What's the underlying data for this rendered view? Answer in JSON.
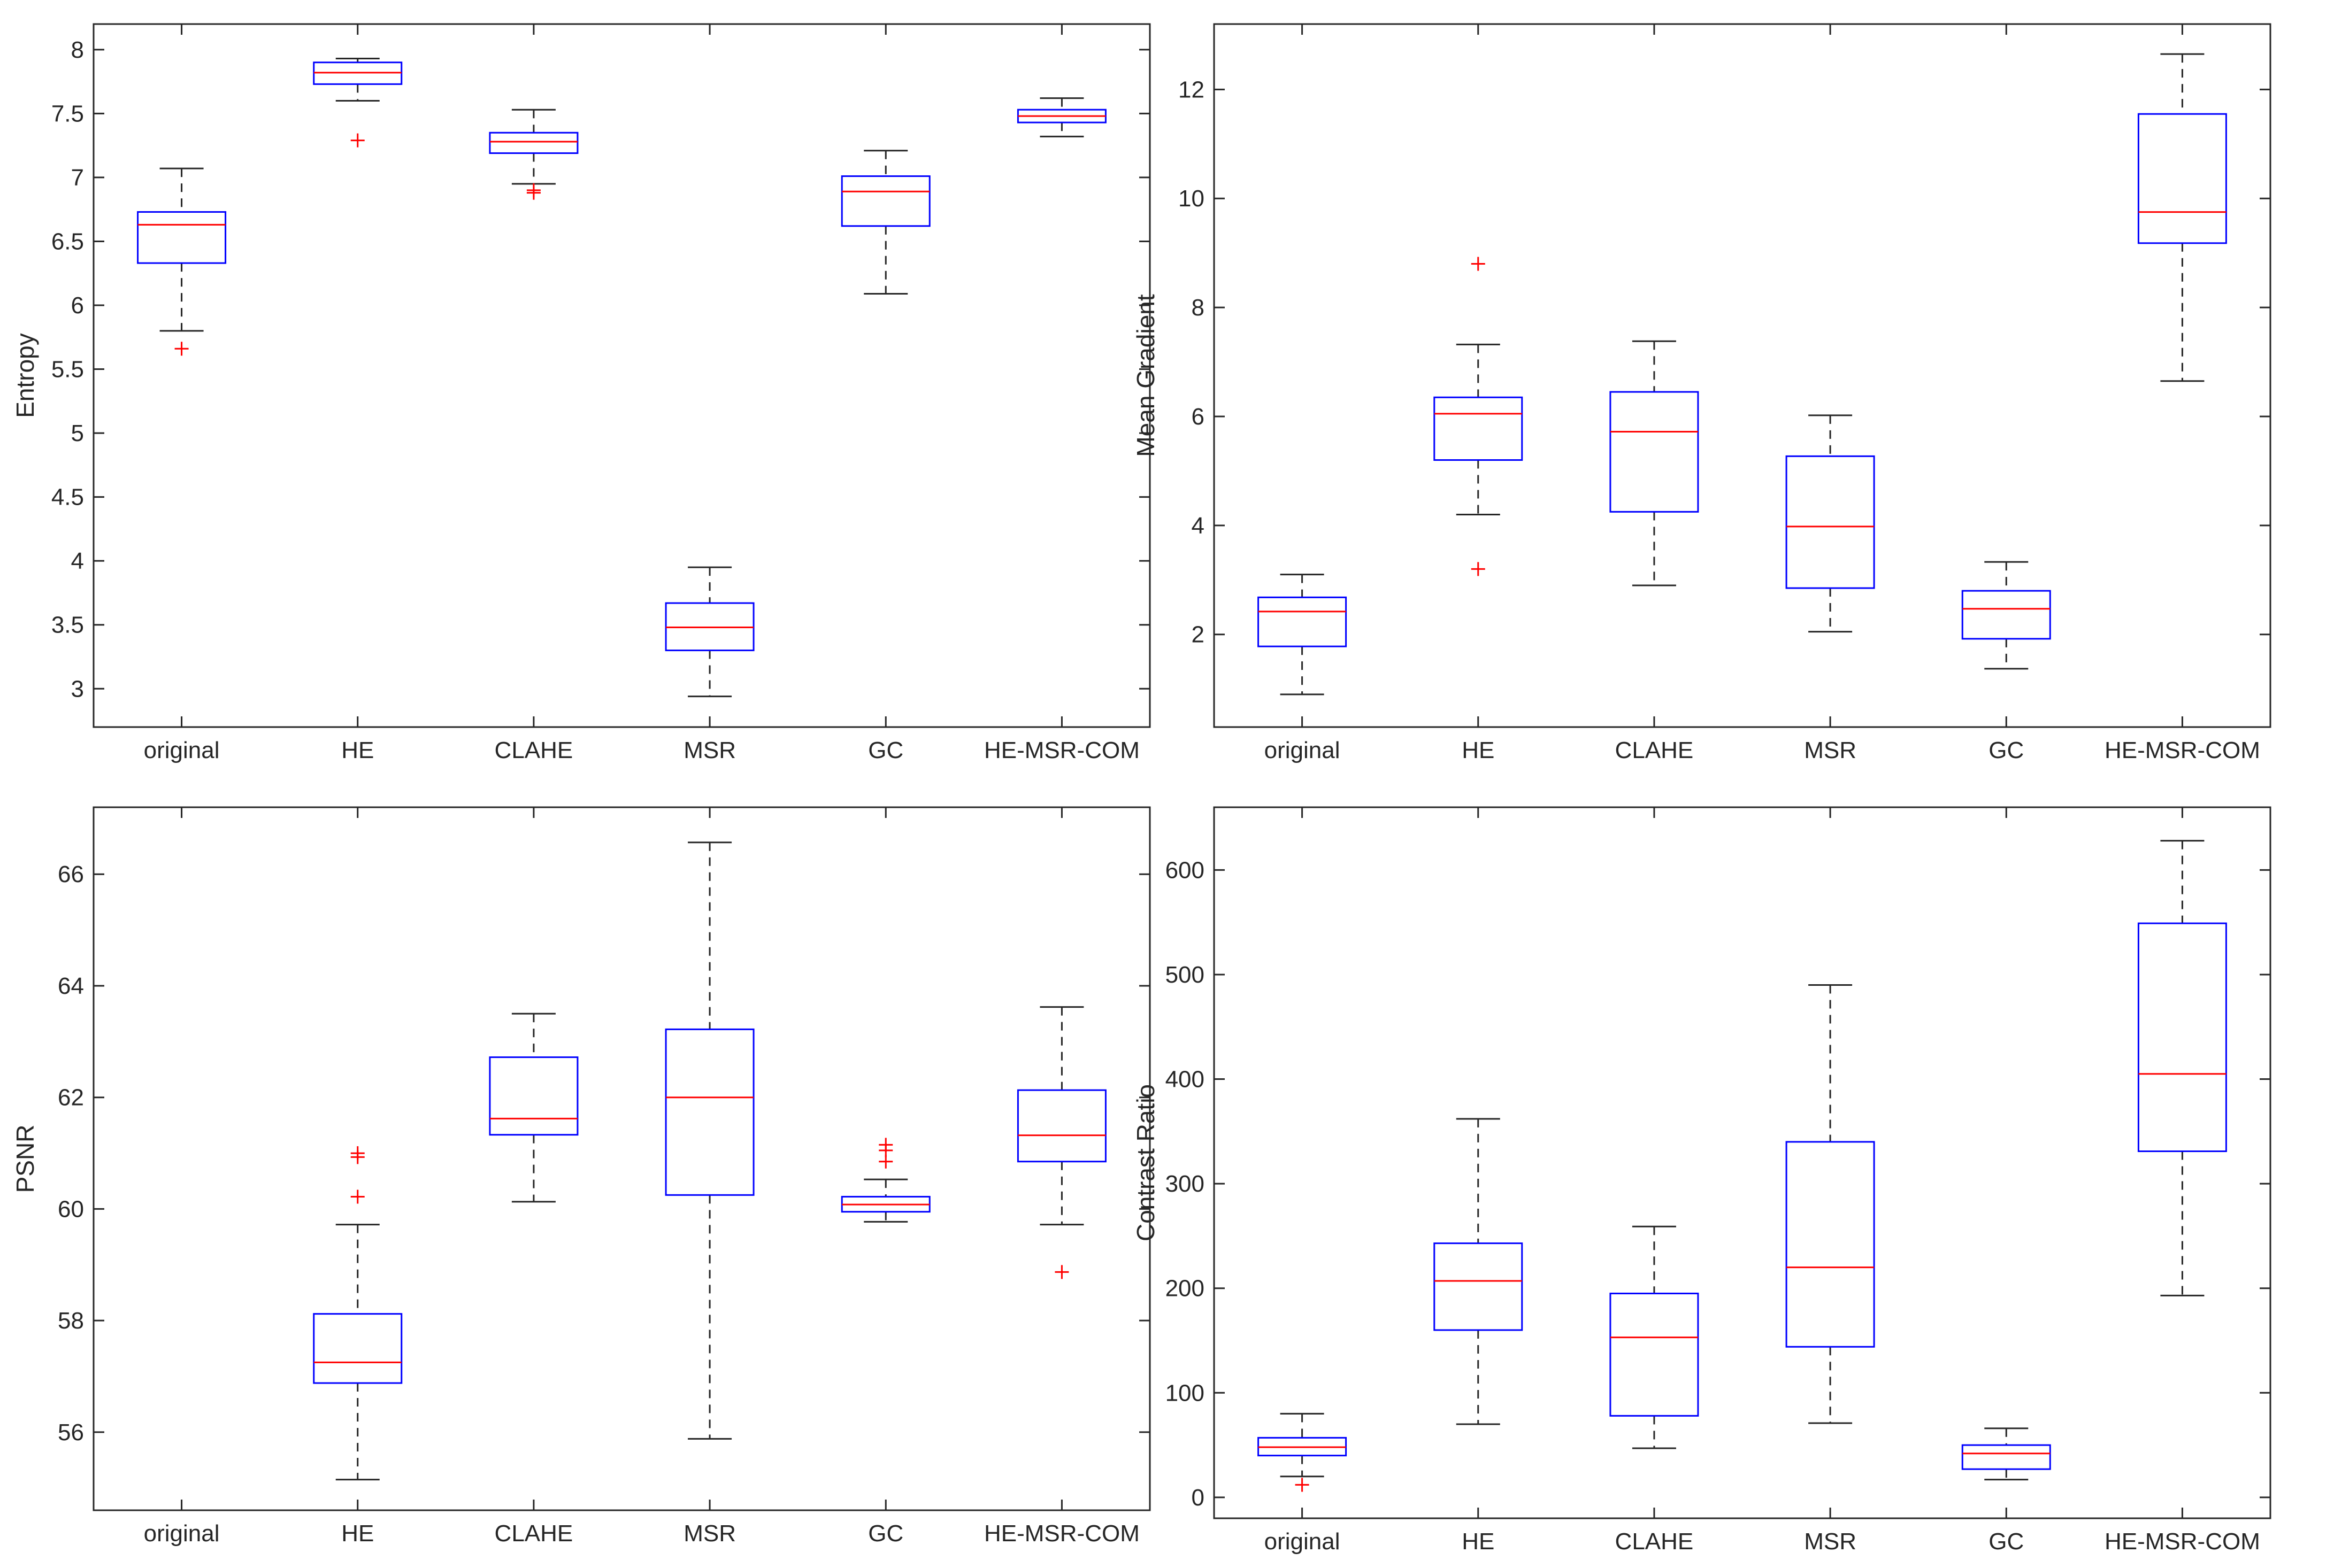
{
  "chart_data": [
    {
      "type": "box",
      "ylabel": "Entropy",
      "ylim": [
        2.7,
        8.2
      ],
      "yticks": [
        3,
        3.5,
        4,
        4.5,
        5,
        5.5,
        6,
        6.5,
        7,
        7.5,
        8
      ],
      "categories": [
        "original",
        "HE",
        "CLAHE",
        "MSR",
        "GC",
        "HE-MSR-COM"
      ],
      "boxes": [
        {
          "label": "original",
          "whisker_low": 5.8,
          "q1": 6.33,
          "median": 6.63,
          "q3": 6.73,
          "whisker_high": 7.07,
          "outliers": [
            5.66
          ]
        },
        {
          "label": "HE",
          "whisker_low": 7.6,
          "q1": 7.73,
          "median": 7.82,
          "q3": 7.9,
          "whisker_high": 7.93,
          "outliers": [
            7.29
          ]
        },
        {
          "label": "CLAHE",
          "whisker_low": 6.95,
          "q1": 7.19,
          "median": 7.28,
          "q3": 7.35,
          "whisker_high": 7.53,
          "outliers": [
            6.9,
            6.88
          ]
        },
        {
          "label": "MSR",
          "whisker_low": 2.94,
          "q1": 3.3,
          "median": 3.48,
          "q3": 3.67,
          "whisker_high": 3.95,
          "outliers": []
        },
        {
          "label": "GC",
          "whisker_low": 6.09,
          "q1": 6.62,
          "median": 6.89,
          "q3": 7.01,
          "whisker_high": 7.21,
          "outliers": []
        },
        {
          "label": "HE-MSR-COM",
          "whisker_low": 7.32,
          "q1": 7.43,
          "median": 7.48,
          "q3": 7.53,
          "whisker_high": 7.62,
          "outliers": []
        }
      ]
    },
    {
      "type": "box",
      "ylabel": "Mean Gradient",
      "ylim": [
        0.3,
        13.2
      ],
      "yticks": [
        2,
        4,
        6,
        8,
        10,
        12
      ],
      "categories": [
        "original",
        "HE",
        "CLAHE",
        "MSR",
        "GC",
        "HE-MSR-COM"
      ],
      "boxes": [
        {
          "label": "original",
          "whisker_low": 0.9,
          "q1": 1.78,
          "median": 2.42,
          "q3": 2.68,
          "whisker_high": 3.1,
          "outliers": []
        },
        {
          "label": "HE",
          "whisker_low": 4.2,
          "q1": 5.2,
          "median": 6.05,
          "q3": 6.35,
          "whisker_high": 7.32,
          "outliers": [
            8.8,
            3.2
          ]
        },
        {
          "label": "CLAHE",
          "whisker_low": 2.9,
          "q1": 4.25,
          "median": 5.72,
          "q3": 6.45,
          "whisker_high": 7.38,
          "outliers": []
        },
        {
          "label": "MSR",
          "whisker_low": 2.05,
          "q1": 2.85,
          "median": 3.98,
          "q3": 5.27,
          "whisker_high": 6.02,
          "outliers": []
        },
        {
          "label": "GC",
          "whisker_low": 1.37,
          "q1": 1.92,
          "median": 2.47,
          "q3": 2.8,
          "whisker_high": 3.33,
          "outliers": []
        },
        {
          "label": "HE-MSR-COM",
          "whisker_low": 6.65,
          "q1": 9.18,
          "median": 9.75,
          "q3": 11.55,
          "whisker_high": 12.65,
          "outliers": []
        }
      ]
    },
    {
      "type": "box",
      "ylabel": "PSNR",
      "ylim": [
        54.6,
        67.2
      ],
      "yticks": [
        56,
        58,
        60,
        62,
        64,
        66
      ],
      "categories": [
        "original",
        "HE",
        "CLAHE",
        "MSR",
        "GC",
        "HE-MSR-COM"
      ],
      "boxes": [
        {
          "label": "HE",
          "whisker_low": 55.15,
          "q1": 56.88,
          "median": 57.25,
          "q3": 58.12,
          "whisker_high": 59.72,
          "outliers": [
            61.0,
            60.93,
            60.22
          ]
        },
        {
          "label": "CLAHE",
          "whisker_low": 60.13,
          "q1": 61.33,
          "median": 61.62,
          "q3": 62.72,
          "whisker_high": 63.5,
          "outliers": []
        },
        {
          "label": "MSR",
          "whisker_low": 55.88,
          "q1": 60.25,
          "median": 62.0,
          "q3": 63.22,
          "whisker_high": 66.57,
          "outliers": []
        },
        {
          "label": "GC",
          "whisker_low": 59.77,
          "q1": 59.95,
          "median": 60.08,
          "q3": 60.22,
          "whisker_high": 60.53,
          "outliers": [
            61.15,
            61.05,
            60.85
          ]
        },
        {
          "label": "HE-MSR-COM",
          "whisker_low": 59.72,
          "q1": 60.85,
          "median": 61.32,
          "q3": 62.13,
          "whisker_high": 63.62,
          "outliers": [
            58.87
          ]
        }
      ]
    },
    {
      "type": "box",
      "ylabel": "Contrast Ratio",
      "ylim": [
        -20,
        660
      ],
      "yticks": [
        0,
        100,
        200,
        300,
        400,
        500,
        600
      ],
      "categories": [
        "original",
        "HE",
        "CLAHE",
        "MSR",
        "GC",
        "HE-MSR-COM"
      ],
      "boxes": [
        {
          "label": "original",
          "whisker_low": 20,
          "q1": 40,
          "median": 48,
          "q3": 57,
          "whisker_high": 80,
          "outliers": [
            12
          ]
        },
        {
          "label": "HE",
          "whisker_low": 70,
          "q1": 160,
          "median": 207,
          "q3": 243,
          "whisker_high": 362,
          "outliers": []
        },
        {
          "label": "CLAHE",
          "whisker_low": 47,
          "q1": 78,
          "median": 153,
          "q3": 195,
          "whisker_high": 259,
          "outliers": []
        },
        {
          "label": "MSR",
          "whisker_low": 71,
          "q1": 144,
          "median": 220,
          "q3": 340,
          "whisker_high": 490,
          "outliers": []
        },
        {
          "label": "GC",
          "whisker_low": 17,
          "q1": 27,
          "median": 42,
          "q3": 50,
          "whisker_high": 66,
          "outliers": []
        },
        {
          "label": "HE-MSR-COM",
          "whisker_low": 193,
          "q1": 331,
          "median": 405,
          "q3": 549,
          "whisker_high": 628,
          "outliers": []
        }
      ]
    }
  ]
}
